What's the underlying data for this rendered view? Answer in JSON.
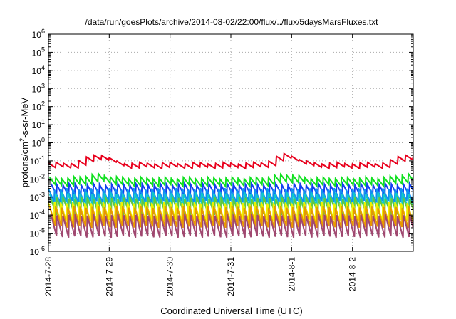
{
  "chart_data": {
    "type": "line",
    "title": "/data/run/goesPlots/archive/2014-08-02/22:00/flux/../flux/5daysMarsFluxes.txt",
    "xlabel": "Coordinated Universal Time (UTC)",
    "ylabel_parts": {
      "pre": "protons/cm",
      "sup": "2",
      "post": "-s-sr-MeV"
    },
    "xlim_days": [
      0,
      6
    ],
    "x_ticks": [
      {
        "day": 0,
        "label": "2014-7-28"
      },
      {
        "day": 1,
        "label": "2014-7-29"
      },
      {
        "day": 2,
        "label": "2014-7-30"
      },
      {
        "day": 3,
        "label": "2014-7-31"
      },
      {
        "day": 4,
        "label": "2014-8-1"
      },
      {
        "day": 5,
        "label": "2014-8-2"
      }
    ],
    "y_scale": "log",
    "ylim": [
      1e-06,
      1000000.0
    ],
    "y_ticks": [
      {
        "exp": -6,
        "label": "10",
        "sup": "-6"
      },
      {
        "exp": -5,
        "label": "10",
        "sup": "-5"
      },
      {
        "exp": -4,
        "label": "10",
        "sup": "-4"
      },
      {
        "exp": -3,
        "label": "10",
        "sup": "-3"
      },
      {
        "exp": -2,
        "label": "10",
        "sup": "-2"
      },
      {
        "exp": -1,
        "label": "10",
        "sup": "-1"
      },
      {
        "exp": 0,
        "label": "10",
        "sup": "0"
      },
      {
        "exp": 1,
        "label": "10",
        "sup": "1"
      },
      {
        "exp": 2,
        "label": "10",
        "sup": "2"
      },
      {
        "exp": 3,
        "label": "10",
        "sup": "3"
      },
      {
        "exp": 4,
        "label": "10",
        "sup": "4"
      },
      {
        "exp": 5,
        "label": "10",
        "sup": "5"
      },
      {
        "exp": 6,
        "label": "10",
        "sup": "6"
      }
    ],
    "grid": true,
    "grid_color": "#aaaaaa",
    "series": [
      {
        "color": "#e8001c",
        "peaks_per_day": 8,
        "base": -1.25,
        "amp": 0.25,
        "bumps": [
          [
            0.8,
            0.5
          ],
          [
            3.9,
            0.5
          ],
          [
            5.9,
            0.5
          ]
        ]
      },
      {
        "color": "#10e020",
        "peaks_per_day": 10,
        "base": -2.15,
        "amp": 0.4,
        "bumps": [
          [
            0.8,
            0.2
          ],
          [
            3.9,
            0.2
          ],
          [
            5.9,
            0.2
          ]
        ]
      },
      {
        "color": "#1040f0",
        "peaks_per_day": 10,
        "base": -2.6,
        "amp": 0.6,
        "bumps": []
      },
      {
        "color": "#1090f0",
        "peaks_per_day": 10,
        "base": -2.9,
        "amp": 0.7,
        "bumps": []
      },
      {
        "color": "#10c8c8",
        "peaks_per_day": 10,
        "base": -3.2,
        "amp": 0.8,
        "bumps": []
      },
      {
        "color": "#60c840",
        "peaks_per_day": 10,
        "base": -3.5,
        "amp": 0.9,
        "bumps": []
      },
      {
        "color": "#f0f000",
        "peaks_per_day": 10,
        "base": -3.8,
        "amp": 1.0,
        "bumps": []
      },
      {
        "color": "#e89800",
        "peaks_per_day": 10,
        "base": -4.1,
        "amp": 1.1,
        "bumps": []
      },
      {
        "color": "#a04870",
        "peaks_per_day": 10,
        "base": -4.6,
        "amp": 1.2,
        "bumps": []
      }
    ]
  }
}
